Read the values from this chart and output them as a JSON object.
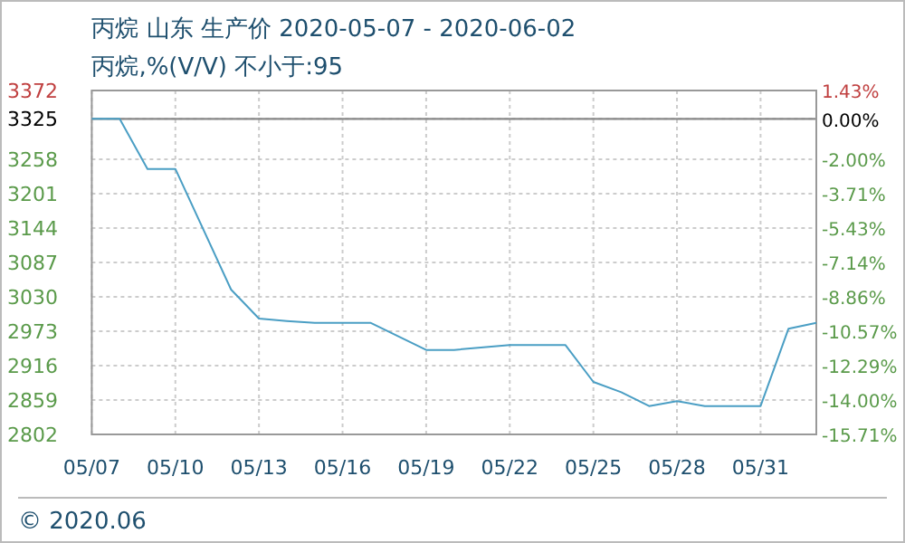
{
  "chart_data": {
    "type": "line",
    "title": "丙烷 山东 生产价 2020-05-07 - 2020-06-02",
    "subtitle": "丙烷,%(V/V)  不小于:95",
    "annotations": [
      "© 2020.06"
    ],
    "x": [
      "2020-05-07",
      "2020-05-08",
      "2020-05-09",
      "2020-05-10",
      "2020-05-12",
      "2020-05-13",
      "2020-05-14",
      "2020-05-15",
      "2020-05-17",
      "2020-05-19",
      "2020-05-20",
      "2020-05-22",
      "2020-05-24",
      "2020-05-25",
      "2020-05-26",
      "2020-05-27",
      "2020-05-28",
      "2020-05-29",
      "2020-05-31",
      "2020-06-01",
      "2020-06-02"
    ],
    "series": [
      {
        "color": "#4a9ec4",
        "values": [
          3325,
          3325,
          3242,
          3242,
          3042,
          2994,
          2990,
          2987,
          2987,
          2942,
          2942,
          2950,
          2950,
          2889,
          2872,
          2849,
          2857,
          2849,
          2849,
          2977,
          2987
        ]
      }
    ],
    "xlim": [
      "2020-05-07",
      "2020-06-02"
    ],
    "xticks": [
      {
        "value": "2020-05-07",
        "label": "05/07"
      },
      {
        "value": "2020-05-10",
        "label": "05/10"
      },
      {
        "value": "2020-05-13",
        "label": "05/13"
      },
      {
        "value": "2020-05-16",
        "label": "05/16"
      },
      {
        "value": "2020-05-19",
        "label": "05/19"
      },
      {
        "value": "2020-05-22",
        "label": "05/22"
      },
      {
        "value": "2020-05-25",
        "label": "05/25"
      },
      {
        "value": "2020-05-28",
        "label": "05/28"
      },
      {
        "value": "2020-05-31",
        "label": "05/31"
      }
    ],
    "ylim": [
      2802,
      3372
    ],
    "yticks": [
      2802,
      2859,
      2916,
      2973,
      3030,
      3087,
      3144,
      3201,
      3258,
      3325,
      3372
    ],
    "y2lim": [
      -15.71,
      1.43
    ],
    "y2ticks": [
      {
        "value": -15.71,
        "label": "-15.71%"
      },
      {
        "value": -14.0,
        "label": "-14.00%"
      },
      {
        "value": -12.29,
        "label": "-12.29%"
      },
      {
        "value": -10.57,
        "label": "-10.57%"
      },
      {
        "value": -8.86,
        "label": "-8.86%"
      },
      {
        "value": -7.14,
        "label": "-7.14%"
      },
      {
        "value": -5.43,
        "label": "-5.43%"
      },
      {
        "value": -3.71,
        "label": "-3.71%"
      },
      {
        "value": -2.0,
        "label": "-2.00%"
      },
      {
        "value": 0,
        "label": "0.00%"
      },
      {
        "value": 1.43,
        "label": "1.43%"
      }
    ],
    "ref_lines": [
      {
        "axis": "y",
        "value": 3325,
        "color": "#888888"
      }
    ],
    "grid": true,
    "line_style": "solid",
    "marker": "none"
  }
}
